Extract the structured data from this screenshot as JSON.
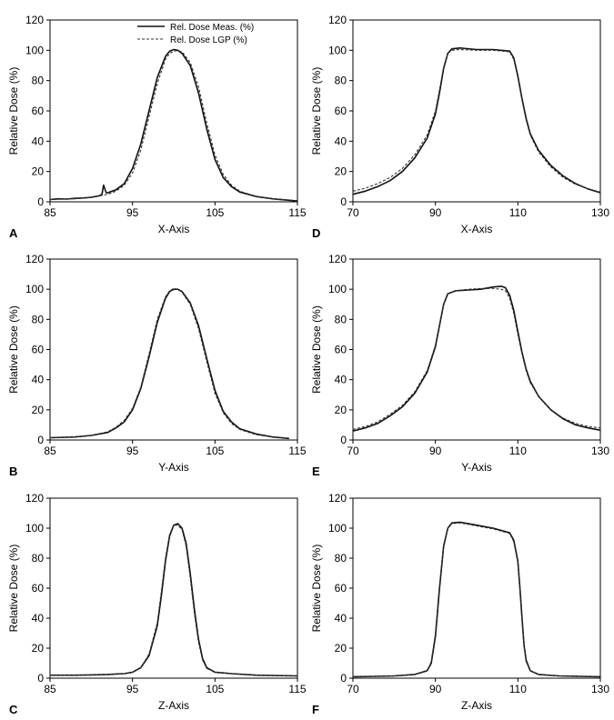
{
  "legend": {
    "measured": "Rel. Dose Meas. (%)",
    "lgp": "Rel. Dose LGP (%)"
  },
  "colors": {
    "measured": "#111111",
    "lgp": "#333333",
    "axis": "#000000"
  },
  "chart_data": [
    {
      "panel": "A",
      "type": "line",
      "xlabel": "X-Axis",
      "ylabel": "Relative Dose (%)",
      "xlim": [
        85,
        115
      ],
      "ylim": [
        0,
        120
      ],
      "xticks": [
        "85",
        "95",
        "105",
        "115"
      ],
      "yticks": [
        "0",
        "20",
        "40",
        "60",
        "80",
        "100",
        "120"
      ],
      "legend": "top-right",
      "series": [
        {
          "name": "Rel. Dose Meas. (%)",
          "style": "solid",
          "x": [
            85,
            86,
            87,
            88,
            89,
            90,
            91,
            91.3,
            91.5,
            91.8,
            92,
            93,
            94,
            95,
            96,
            97,
            98,
            99,
            99.5,
            100,
            100.5,
            101,
            102,
            103,
            104,
            105,
            106,
            107,
            108,
            110,
            112,
            114,
            115
          ],
          "y": [
            1.5,
            2,
            1.8,
            2.3,
            2.5,
            3,
            4,
            5,
            11,
            6,
            6,
            8,
            12,
            22,
            38,
            60,
            82,
            96,
            99.5,
            100.5,
            100,
            98,
            90,
            72,
            48,
            28,
            16,
            10,
            6.5,
            3.5,
            2,
            1,
            0.5
          ]
        },
        {
          "name": "Rel. Dose LGP (%)",
          "style": "dashed",
          "x": [
            85,
            88,
            90,
            92,
            93,
            94,
            95,
            96,
            97,
            98,
            99,
            99.5,
            100,
            100.5,
            101,
            102,
            103,
            104,
            105,
            106,
            107,
            108,
            110,
            112,
            115
          ],
          "y": [
            1.5,
            2,
            2.8,
            5,
            7,
            11,
            19,
            34,
            56,
            78,
            94,
            98,
            99.5,
            99.8,
            99,
            92,
            76,
            52,
            31,
            18,
            11,
            7,
            3.5,
            2,
            0.8
          ]
        }
      ]
    },
    {
      "panel": "B",
      "type": "line",
      "xlabel": "Y-Axis",
      "ylabel": "Relative Dose (%)",
      "xlim": [
        85,
        115
      ],
      "ylim": [
        0,
        120
      ],
      "xticks": [
        "85",
        "95",
        "105",
        "115"
      ],
      "yticks": [
        "0",
        "20",
        "40",
        "60",
        "80",
        "100",
        "120"
      ],
      "series": [
        {
          "name": "Rel. Dose Meas. (%)",
          "style": "solid",
          "x": [
            85,
            88,
            90,
            92,
            93,
            94,
            95,
            96,
            97,
            98,
            99,
            99.5,
            100,
            100.5,
            101,
            102,
            103,
            104,
            105,
            106,
            107,
            108,
            110,
            112,
            114
          ],
          "y": [
            1.5,
            2,
            3,
            5,
            8,
            12,
            20,
            34,
            55,
            78,
            94,
            98.5,
            100,
            100,
            98.5,
            91,
            76,
            54,
            33,
            19,
            12,
            7.5,
            4,
            2,
            1
          ]
        },
        {
          "name": "Rel. Dose LGP (%)",
          "style": "dashed",
          "x": [
            85,
            88,
            90,
            92,
            93,
            94,
            95,
            96,
            97,
            98,
            99,
            99.5,
            100,
            100.5,
            101,
            102,
            103,
            104,
            105,
            106,
            107,
            108,
            110,
            112,
            114
          ],
          "y": [
            1.5,
            2,
            3,
            5.5,
            8.5,
            13,
            21,
            35,
            57,
            80,
            95,
            99,
            100.5,
            100,
            98,
            90,
            74,
            52,
            31,
            18,
            11,
            7,
            3.5,
            2,
            1
          ]
        }
      ]
    },
    {
      "panel": "C",
      "type": "line",
      "xlabel": "Z-Axis",
      "ylabel": "Relative Dose (%)",
      "xlim": [
        85,
        115
      ],
      "ylim": [
        0,
        120
      ],
      "xticks": [
        "85",
        "95",
        "105",
        "115"
      ],
      "yticks": [
        "0",
        "20",
        "40",
        "60",
        "80",
        "100",
        "120"
      ],
      "series": [
        {
          "name": "Rel. Dose Meas. (%)",
          "style": "solid",
          "x": [
            85,
            88,
            90,
            92,
            94,
            95,
            96,
            97,
            98,
            98.5,
            99,
            99.5,
            100,
            100.5,
            101,
            101.5,
            102,
            102.5,
            103,
            103.5,
            104,
            105,
            107,
            110,
            115
          ],
          "y": [
            2,
            2,
            2.2,
            2.5,
            3,
            4,
            7,
            15,
            35,
            55,
            78,
            95,
            102,
            103,
            100,
            90,
            70,
            46,
            26,
            13,
            7,
            4,
            3,
            2,
            1.5
          ]
        },
        {
          "name": "Rel. Dose LGP (%)",
          "style": "dashed",
          "x": [
            85,
            88,
            90,
            92,
            94,
            95,
            96,
            97,
            98,
            98.5,
            99,
            99.5,
            100,
            100.5,
            101,
            101.5,
            102,
            102.5,
            103,
            103.5,
            104,
            105,
            107,
            110,
            115
          ],
          "y": [
            2,
            2,
            2.2,
            2.5,
            3,
            4,
            7,
            16,
            37,
            58,
            80,
            96,
            102,
            102,
            99,
            88,
            67,
            43,
            24,
            12,
            6.5,
            4,
            3,
            2,
            1.5
          ]
        }
      ]
    },
    {
      "panel": "D",
      "type": "line",
      "xlabel": "X-Axis",
      "ylabel": "Relative Dose (%)",
      "xlim": [
        70,
        130
      ],
      "ylim": [
        0,
        120
      ],
      "xticks": [
        "70",
        "90",
        "110",
        "130"
      ],
      "yticks": [
        "0",
        "20",
        "40",
        "60",
        "80",
        "100",
        "120"
      ],
      "series": [
        {
          "name": "Rel. Dose Meas. (%)",
          "style": "solid",
          "x": [
            70,
            73,
            76,
            79,
            82,
            85,
            88,
            90,
            91,
            92,
            93,
            94,
            96,
            100,
            104,
            108,
            109,
            110,
            111,
            112,
            113,
            115,
            118,
            121,
            124,
            127,
            130
          ],
          "y": [
            5,
            7,
            10,
            14,
            20,
            29,
            42,
            58,
            72,
            88,
            98,
            101,
            101.5,
            100.5,
            100.5,
            99.5,
            95,
            83,
            68,
            55,
            45,
            34,
            24,
            17,
            12,
            8.5,
            6
          ]
        },
        {
          "name": "Rel. Dose LGP (%)",
          "style": "dashed",
          "x": [
            70,
            73,
            76,
            79,
            82,
            85,
            88,
            90,
            91,
            92,
            93,
            94,
            96,
            100,
            104,
            108,
            109,
            110,
            111,
            112,
            113,
            115,
            118,
            121,
            124,
            127,
            130
          ],
          "y": [
            7,
            9,
            12,
            16,
            22,
            31,
            44,
            60,
            74,
            89,
            98,
            100,
            100.5,
            100,
            100,
            99,
            94,
            82,
            67,
            54,
            44,
            33,
            23,
            16,
            11.5,
            8.5,
            6.5
          ]
        }
      ]
    },
    {
      "panel": "E",
      "type": "line",
      "xlabel": "Y-Axis",
      "ylabel": "Relative Dose (%)",
      "xlim": [
        70,
        130
      ],
      "ylim": [
        0,
        120
      ],
      "xticks": [
        "70",
        "90",
        "110",
        "130"
      ],
      "yticks": [
        "0",
        "20",
        "40",
        "60",
        "80",
        "100",
        "120"
      ],
      "series": [
        {
          "name": "Rel. Dose Meas. (%)",
          "style": "solid",
          "x": [
            70,
            73,
            76,
            79,
            82,
            85,
            88,
            90,
            91,
            92,
            93,
            95,
            98,
            101,
            104,
            106,
            107,
            108,
            109,
            110,
            111,
            112,
            113,
            115,
            118,
            121,
            124,
            127,
            130
          ],
          "y": [
            6,
            8,
            11,
            16,
            22,
            31,
            45,
            62,
            76,
            90,
            97,
            99,
            99.5,
            100,
            101.5,
            102,
            101,
            96,
            86,
            72,
            58,
            47,
            39,
            29,
            20,
            14,
            10,
            8,
            6.5
          ]
        },
        {
          "name": "Rel. Dose LGP (%)",
          "style": "dashed",
          "x": [
            70,
            73,
            76,
            79,
            82,
            85,
            88,
            90,
            91,
            92,
            93,
            95,
            98,
            101,
            104,
            106,
            107,
            108,
            109,
            110,
            111,
            112,
            113,
            115,
            118,
            121,
            124,
            127,
            130
          ],
          "y": [
            7,
            9,
            12,
            17,
            23,
            32,
            46,
            63,
            77,
            90,
            97,
            99,
            100,
            100.5,
            100.5,
            100,
            99,
            94,
            84,
            70,
            57,
            46,
            38,
            29,
            20,
            14.5,
            11,
            9,
            8
          ]
        }
      ]
    },
    {
      "panel": "F",
      "type": "line",
      "xlabel": "Z-Axis",
      "ylabel": "Relative Dose (%)",
      "xlim": [
        70,
        130
      ],
      "ylim": [
        0,
        120
      ],
      "xticks": [
        "70",
        "90",
        "110",
        "130"
      ],
      "yticks": [
        "0",
        "20",
        "40",
        "60",
        "80",
        "100",
        "120"
      ],
      "series": [
        {
          "name": "Rel. Dose Meas. (%)",
          "style": "solid",
          "x": [
            70,
            75,
            80,
            85,
            88,
            89,
            90,
            91,
            92,
            93,
            94,
            96,
            100,
            104,
            108,
            109,
            110,
            110.5,
            111,
            111.5,
            112,
            113,
            115,
            120,
            125,
            130
          ],
          "y": [
            1,
            1.2,
            1.5,
            2.5,
            5,
            10,
            28,
            60,
            88,
            100,
            103.5,
            104,
            102,
            100,
            97,
            92,
            78,
            60,
            40,
            22,
            12,
            5,
            2.5,
            1.5,
            1.2,
            1
          ]
        },
        {
          "name": "Rel. Dose LGP (%)",
          "style": "dashed",
          "x": [
            70,
            75,
            80,
            85,
            88,
            89,
            90,
            91,
            92,
            93,
            94,
            96,
            100,
            104,
            108,
            109,
            110,
            110.5,
            111,
            111.5,
            112,
            113,
            115,
            120,
            125,
            130
          ],
          "y": [
            1,
            1.2,
            1.5,
            2.5,
            5,
            11,
            30,
            62,
            89,
            100,
            103,
            103.5,
            101.5,
            99.5,
            96.5,
            91,
            77,
            58,
            38,
            21,
            11,
            5,
            2.5,
            1.5,
            1.2,
            1
          ]
        }
      ]
    }
  ]
}
